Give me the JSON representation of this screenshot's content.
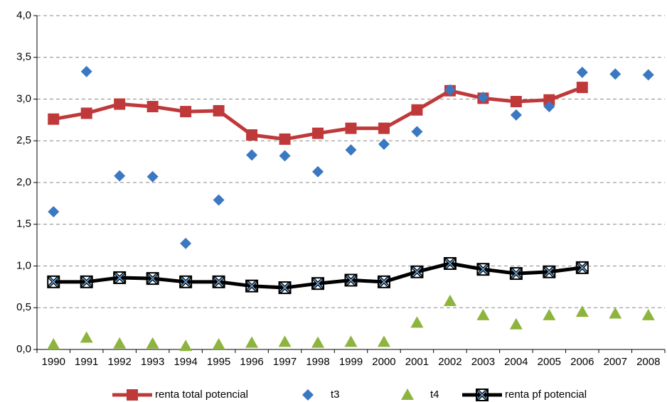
{
  "chart_data": {
    "type": "line",
    "categories": [
      "1990",
      "1991",
      "1992",
      "1993",
      "1994",
      "1995",
      "1996",
      "1997",
      "1998",
      "1999",
      "2000",
      "2001",
      "2002",
      "2003",
      "2004",
      "2005",
      "2006",
      "2007",
      "2008"
    ],
    "ylim": [
      0,
      4
    ],
    "yticks": [
      {
        "value": 0,
        "label": "0,0"
      },
      {
        "value": 0.5,
        "label": "0,5"
      },
      {
        "value": 1,
        "label": "1,0"
      },
      {
        "value": 1.5,
        "label": "1,5"
      },
      {
        "value": 2,
        "label": "2,0"
      },
      {
        "value": 2.5,
        "label": "2,5"
      },
      {
        "value": 3,
        "label": "3,0"
      },
      {
        "value": 3.5,
        "label": "3,5"
      },
      {
        "value": 4,
        "label": "4,0"
      }
    ],
    "grid": true,
    "legend": "bottom",
    "series": [
      {
        "name": "renta total potencial",
        "color": "#c0393a",
        "marker": "square",
        "line": true,
        "values": [
          2.76,
          2.83,
          2.94,
          2.91,
          2.85,
          2.86,
          2.57,
          2.52,
          2.59,
          2.65,
          2.65,
          2.87,
          3.1,
          3.01,
          2.97,
          2.99,
          3.14,
          null,
          null
        ]
      },
      {
        "name": "t3",
        "color": "#3b78c2",
        "marker": "diamond",
        "line": false,
        "values": [
          1.65,
          3.33,
          2.08,
          2.07,
          1.27,
          1.79,
          2.33,
          2.32,
          2.13,
          2.39,
          2.46,
          2.61,
          3.11,
          3.02,
          2.81,
          2.91,
          3.32,
          3.3,
          3.29
        ]
      },
      {
        "name": "t4",
        "color": "#8db43c",
        "marker": "triangle",
        "line": false,
        "values": [
          0.06,
          0.14,
          0.07,
          0.07,
          0.04,
          0.06,
          0.08,
          0.09,
          0.08,
          0.09,
          0.09,
          0.32,
          0.58,
          0.41,
          0.3,
          0.41,
          0.45,
          0.43,
          0.41
        ]
      },
      {
        "name": "renta pf potencial",
        "color": "#000000",
        "marker": "x",
        "line": true,
        "values": [
          0.81,
          0.81,
          0.86,
          0.85,
          0.81,
          0.81,
          0.76,
          0.74,
          0.79,
          0.83,
          0.81,
          0.93,
          1.03,
          0.96,
          0.91,
          0.93,
          0.98,
          null,
          null
        ]
      }
    ]
  }
}
